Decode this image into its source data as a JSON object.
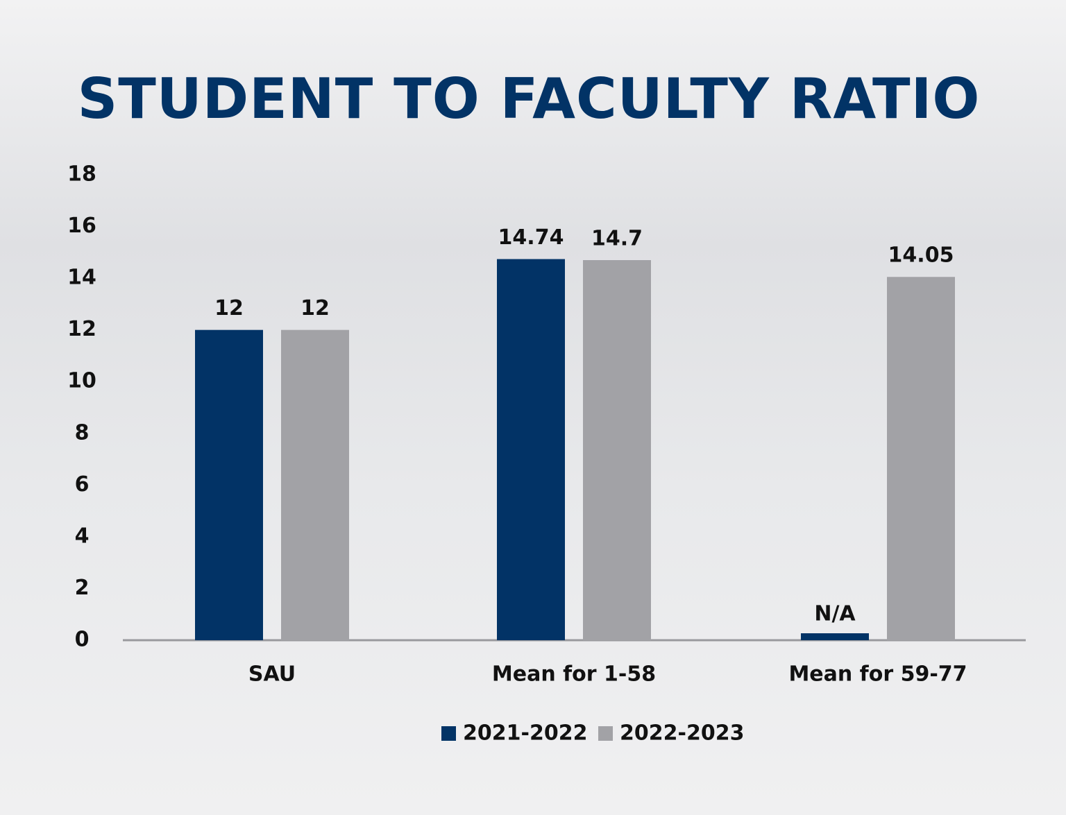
{
  "chart_data": {
    "type": "bar",
    "title": "STUDENT TO FACULTY RATIO",
    "categories": [
      "SAU",
      "Mean for 1-58",
      "Mean for 59-77"
    ],
    "series": [
      {
        "name": "2021-2022",
        "color": "#023366",
        "values": [
          12,
          14.74,
          null
        ],
        "value_labels": [
          "12",
          "14.74",
          "N/A"
        ]
      },
      {
        "name": "2022-2023",
        "color": "#a2a2a6",
        "values": [
          12,
          14.7,
          14.05
        ]
      }
    ],
    "ylim": [
      0,
      18
    ],
    "yticks": [
      0,
      2,
      4,
      6,
      8,
      10,
      12,
      14,
      16,
      18
    ],
    "grid": false,
    "legend": "bottom"
  }
}
